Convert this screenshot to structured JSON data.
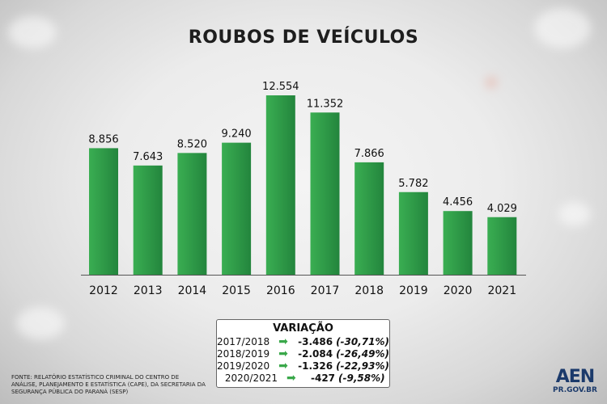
{
  "title": "ROUBOS DE VEÍCULOS",
  "chart_data": {
    "type": "bar",
    "title": "ROUBOS DE VEÍCULOS",
    "categories": [
      "2012",
      "2013",
      "2014",
      "2015",
      "2016",
      "2017",
      "2018",
      "2019",
      "2020",
      "2021"
    ],
    "values": [
      8856,
      7643,
      8520,
      9240,
      12554,
      11352,
      7866,
      5782,
      4456,
      4029
    ],
    "labels": [
      "8.856",
      "7.643",
      "8.520",
      "9.240",
      "12.554",
      "11.352",
      "7.866",
      "5.782",
      "4.456",
      "4.029"
    ],
    "bar_color": "#2e9a48",
    "ylim": [
      0,
      12554
    ],
    "grid": false
  },
  "variacao": {
    "title": "VARIAÇÃO",
    "rows": [
      {
        "period": "2017/2018",
        "value": "-3.486",
        "pct": "(-30,71%)"
      },
      {
        "period": "2018/2019",
        "value": "-2.084",
        "pct": "(-26,49%)"
      },
      {
        "period": "2019/2020",
        "value": "-1.326",
        "pct": "(-22,93%)"
      },
      {
        "period": "2020/2021",
        "value": "-427",
        "pct": "(-9,58%)"
      }
    ]
  },
  "source": "FONTE: RELATÓRIO ESTATÍSTICO CRIMINAL DO CENTRO DE ANÁLISE, PLANEJAMENTO E ESTATÍSTICA (CAPE), DA SECRETARIA DA SEGURANÇA PÚBLICA DO PARANÁ (SESP)",
  "logo": {
    "main": "AEN",
    "sub": "PR.GOV.BR"
  }
}
